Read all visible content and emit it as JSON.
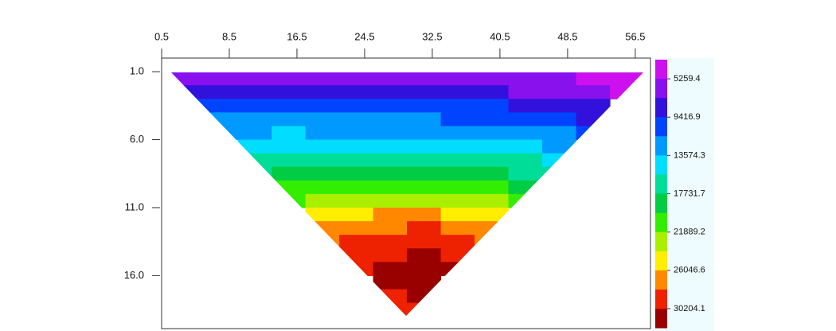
{
  "chart_data": {
    "type": "contour",
    "x": [
      3.5,
      7.5,
      11.5,
      15.5,
      19.5,
      23.5,
      27.5,
      31.5,
      35.5,
      39.5,
      43.5,
      47.5,
      51.5,
      55.5
    ],
    "y": [
      1.5,
      2.5,
      3.5,
      4.5,
      5.5,
      6.5,
      7.5,
      8.5,
      9.5,
      10.5,
      11.5,
      12.5,
      13.5,
      14.5,
      15.5,
      16.5,
      17.5,
      18.5
    ],
    "z": [
      [
        6200,
        6000,
        5900,
        6000,
        6100,
        6000,
        6100,
        6000,
        6200,
        6100,
        6000,
        5800,
        5200,
        4200
      ],
      [
        8200,
        8400,
        8300,
        8200,
        8100,
        8200,
        8000,
        7900,
        7800,
        7600,
        7300,
        6800,
        6200,
        4800
      ],
      [
        9800,
        10200,
        10300,
        10200,
        10100,
        10000,
        9900,
        9800,
        9700,
        9500,
        9200,
        8600,
        7500,
        null
      ],
      [
        null,
        11800,
        12000,
        11900,
        11800,
        11700,
        11600,
        11500,
        11400,
        11200,
        10800,
        10000,
        9200,
        null
      ],
      [
        null,
        13200,
        13500,
        13600,
        13500,
        13400,
        13300,
        13200,
        13100,
        12900,
        12500,
        11800,
        11000,
        null
      ],
      [
        null,
        null,
        15000,
        15200,
        15300,
        15100,
        15000,
        14900,
        14700,
        14400,
        13900,
        13200,
        null,
        null
      ],
      [
        null,
        null,
        16200,
        16800,
        17000,
        16900,
        16800,
        16700,
        16500,
        16200,
        15800,
        15000,
        null,
        null
      ],
      [
        null,
        null,
        17600,
        18400,
        18800,
        18900,
        18900,
        18800,
        18600,
        18200,
        17600,
        16600,
        null,
        null
      ],
      [
        null,
        null,
        null,
        20000,
        20600,
        21000,
        21200,
        21000,
        20700,
        20200,
        19400,
        null,
        null,
        null
      ],
      [
        null,
        null,
        null,
        21800,
        23000,
        23600,
        23800,
        23500,
        23000,
        22200,
        21000,
        null,
        null,
        null
      ],
      [
        null,
        null,
        null,
        null,
        24600,
        25800,
        26400,
        26200,
        25500,
        24200,
        null,
        null,
        null,
        null
      ],
      [
        null,
        null,
        null,
        null,
        26200,
        27600,
        28000,
        28200,
        27600,
        26200,
        null,
        null,
        null,
        null
      ],
      [
        null,
        null,
        null,
        null,
        27000,
        28800,
        29400,
        29600,
        29000,
        27400,
        null,
        null,
        null,
        null
      ],
      [
        null,
        null,
        null,
        null,
        null,
        29200,
        30200,
        30800,
        29800,
        null,
        null,
        null,
        null,
        null
      ],
      [
        null,
        null,
        null,
        null,
        null,
        29400,
        30600,
        31400,
        30400,
        null,
        null,
        null,
        null,
        null
      ],
      [
        null,
        null,
        null,
        null,
        null,
        null,
        30400,
        31200,
        null,
        null,
        null,
        null,
        null,
        null
      ],
      [
        null,
        null,
        null,
        null,
        null,
        null,
        30000,
        30600,
        null,
        null,
        null,
        null,
        null,
        null
      ],
      [
        null,
        null,
        null,
        null,
        null,
        null,
        29600,
        29800,
        null,
        null,
        null,
        null,
        null,
        null
      ]
    ],
    "xlim": [
      0.5,
      58.3
    ],
    "xticks": [
      0.5,
      8.5,
      16.5,
      24.5,
      32.5,
      40.5,
      48.5,
      56.5
    ],
    "ylim": [
      0,
      19.9
    ],
    "yticks": [
      {
        "value": 1,
        "label": "1.0"
      },
      {
        "value": 6,
        "label": "6.0"
      },
      {
        "value": 11,
        "label": "11.0"
      },
      {
        "value": 16,
        "label": "16.0"
      }
    ],
    "colorbar": {
      "lim": [
        3180.7,
        32282.8
      ],
      "ticks": [
        5259.4,
        9416.9,
        13574.3,
        17731.7,
        21889.2,
        26046.6,
        30204.1
      ],
      "colors": [
        "#cc11ee",
        "#8811ee",
        "#3311dd",
        "#0044ff",
        "#0099ff",
        "#00ddff",
        "#00dd99",
        "#00cc44",
        "#33ee00",
        "#aaee00",
        "#ffee00",
        "#ff8800",
        "#ee2200",
        "#990000"
      ]
    }
  }
}
